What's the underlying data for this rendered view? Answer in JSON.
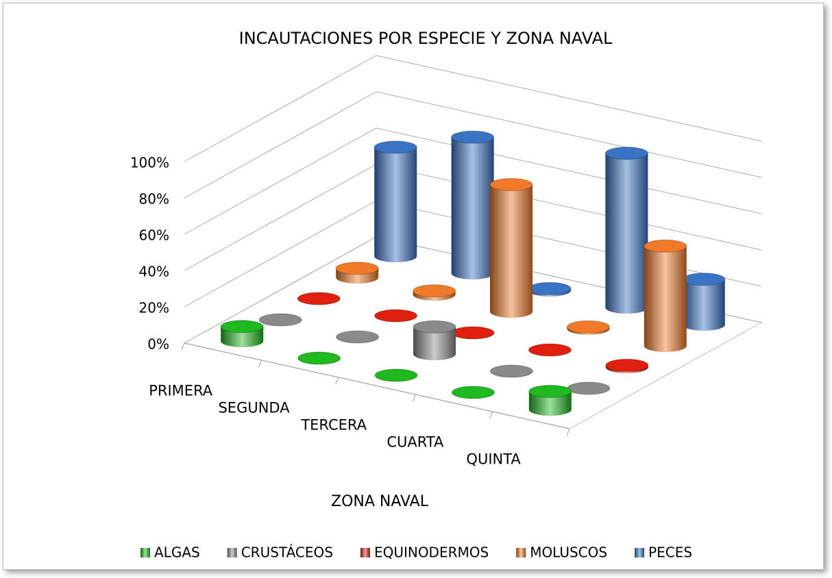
{
  "chart_data": {
    "type": "cylinder3d",
    "title": "INCAUTACIONES POR ESPECIE Y ZONA NAVAL",
    "x_label": "ZONA NAVAL",
    "categories": [
      "PRIMERA",
      "SEGUNDA",
      "TERCERA",
      "CUARTA",
      "QUINTA"
    ],
    "series": [
      {
        "name": "ALGAS",
        "color": "#1fb81f",
        "values": [
          8,
          0,
          0,
          0,
          10
        ]
      },
      {
        "name": "CRUSTÁCEOS",
        "color": "#8a8a8a",
        "values": [
          0,
          0,
          15,
          0,
          0
        ]
      },
      {
        "name": "EQUINODERMOS",
        "color": "#e0200e",
        "values": [
          0,
          0,
          0,
          0,
          1
        ]
      },
      {
        "name": "MOLUSCOS",
        "color": "#f07a28",
        "values": [
          5,
          2,
          70,
          1,
          55
        ]
      },
      {
        "name": "PECES",
        "color": "#3a72c4",
        "values": [
          60,
          75,
          1,
          85,
          25
        ]
      }
    ],
    "ylim": [
      0,
      100
    ],
    "yticks": [
      {
        "value": 0,
        "label": "0%"
      },
      {
        "value": 20,
        "label": "20%"
      },
      {
        "value": 40,
        "label": "40%"
      },
      {
        "value": 60,
        "label": "60%"
      },
      {
        "value": 80,
        "label": "80%"
      },
      {
        "value": 100,
        "label": "100%"
      }
    ],
    "grid": true,
    "legend": "bottom"
  }
}
